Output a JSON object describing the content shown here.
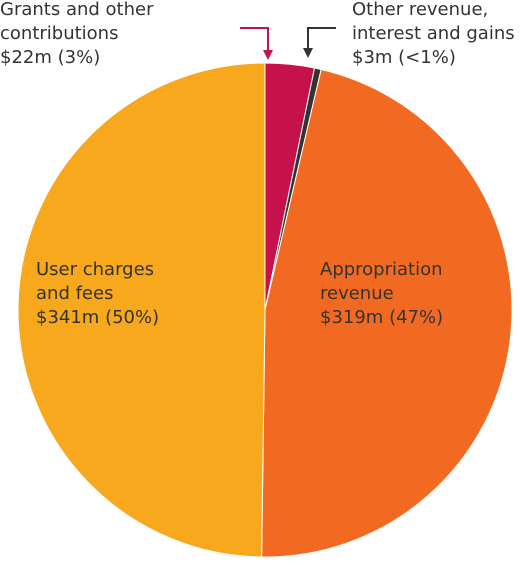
{
  "chart_data": {
    "type": "pie",
    "categories": [
      "Grants and other contributions",
      "Other revenue, interest and gains",
      "Appropriation revenue",
      "User charges and fees"
    ],
    "values": [
      22,
      3,
      319,
      341
    ],
    "value_labels": [
      "$22m (3%)",
      "$3m (<1%)",
      "$319m (47%)",
      "$341m (50%)"
    ],
    "colors": [
      "#c5124a",
      "#333333",
      "#f26a22",
      "#f7a81d"
    ]
  }
}
